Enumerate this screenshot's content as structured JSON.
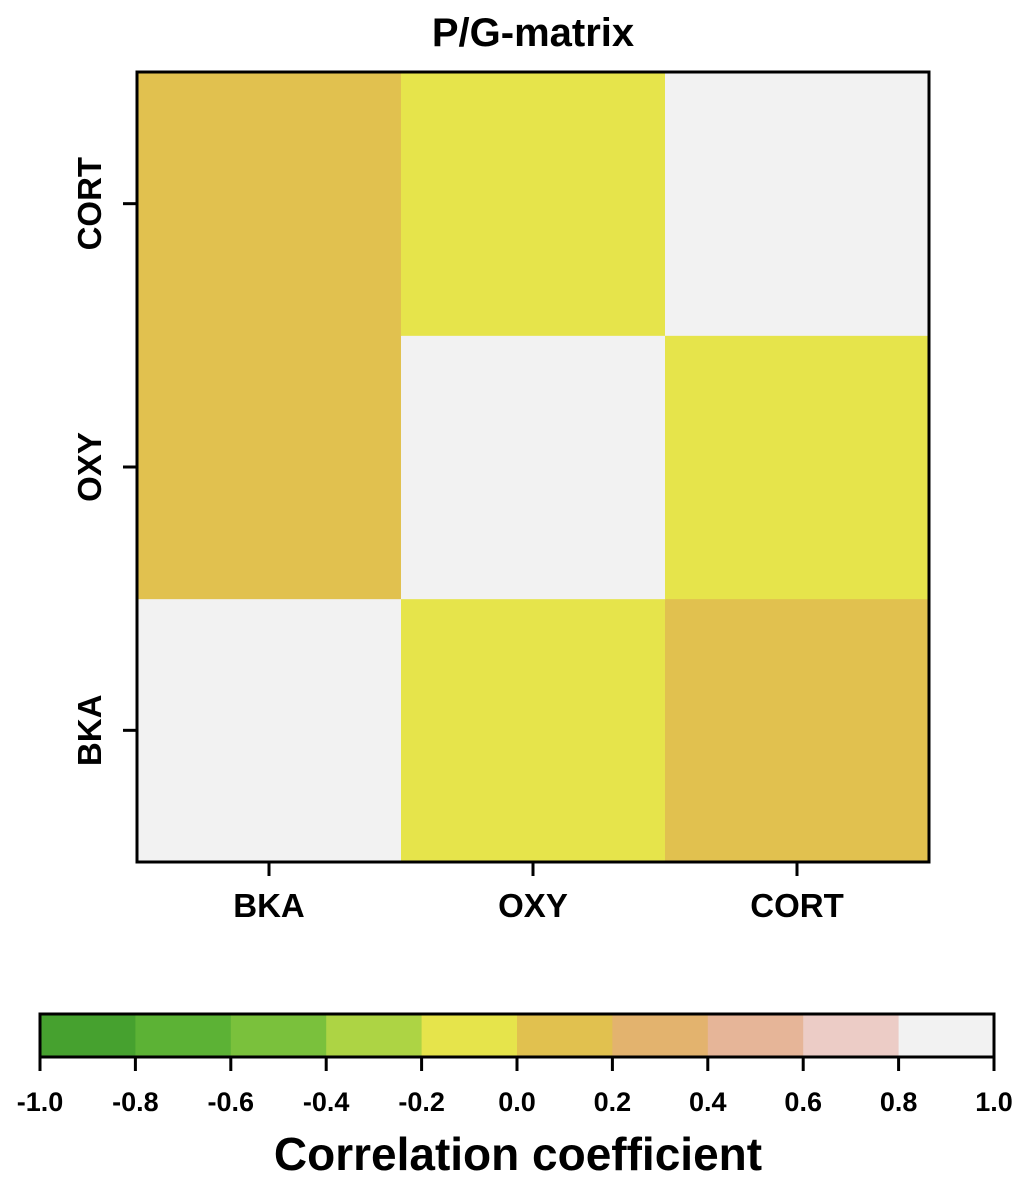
{
  "chart_data": {
    "type": "heatmap",
    "title": "P/G-matrix",
    "x_categories": [
      "BKA",
      "OXY",
      "CORT"
    ],
    "y_categories": [
      "BKA",
      "OXY",
      "CORT"
    ],
    "values": [
      [
        1.0,
        -0.1,
        0.1
      ],
      [
        0.1,
        1.0,
        -0.1
      ],
      [
        0.1,
        -0.1,
        1.0
      ]
    ],
    "colorbar": {
      "title": "Correlation coefficient",
      "range": [
        -1.0,
        1.0
      ],
      "ticks": [
        "-1.0",
        "-0.8",
        "-0.6",
        "-0.4",
        "-0.2",
        "0.0",
        "0.2",
        "0.4",
        "0.6",
        "0.8",
        "1.0"
      ],
      "bins": [
        {
          "min": -1.0,
          "max": -0.8,
          "color": "#46a12f"
        },
        {
          "min": -0.8,
          "max": -0.6,
          "color": "#5cb235"
        },
        {
          "min": -0.6,
          "max": -0.4,
          "color": "#7ac13c"
        },
        {
          "min": -0.4,
          "max": -0.2,
          "color": "#add444"
        },
        {
          "min": -0.2,
          "max": 0.0,
          "color": "#e6e44b"
        },
        {
          "min": 0.0,
          "max": 0.2,
          "color": "#e1c14f"
        },
        {
          "min": 0.2,
          "max": 0.4,
          "color": "#e3b36e"
        },
        {
          "min": 0.4,
          "max": 0.6,
          "color": "#e6b598"
        },
        {
          "min": 0.6,
          "max": 0.8,
          "color": "#ecccc6"
        },
        {
          "min": 0.8,
          "max": 1.0,
          "color": "#f2f2f2"
        }
      ]
    }
  }
}
